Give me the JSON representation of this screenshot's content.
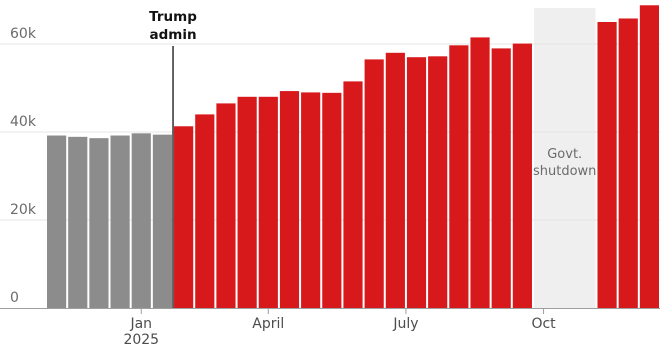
{
  "chart_data": {
    "type": "bar",
    "title": "",
    "xlabel": "",
    "ylabel": "",
    "ylim": [
      0,
      70000
    ],
    "yticks": [
      {
        "value": 0,
        "label": "0"
      },
      {
        "value": 20000,
        "label": "20k"
      },
      {
        "value": 40000,
        "label": "40k"
      },
      {
        "value": 60000,
        "label": "60k"
      }
    ],
    "grid": true,
    "legend": "none",
    "colors": {
      "before_admin": "#8c8c8c",
      "trump_admin": "#d7191c",
      "shutdown_band": "#efefef",
      "annotation": "#121212"
    },
    "series": [
      {
        "values": [
          39200,
          38900,
          38600,
          39200,
          39700,
          39400,
          41300,
          44000,
          46500,
          48000,
          48000,
          49300,
          49000,
          48900,
          51500,
          56500,
          58000,
          57000,
          57200,
          59700,
          61500,
          59000,
          60100,
          null,
          null,
          null,
          65000,
          65800,
          68800
        ],
        "period": [
          "before",
          "before",
          "before",
          "before",
          "before",
          "before",
          "admin",
          "admin",
          "admin",
          "admin",
          "admin",
          "admin",
          "admin",
          "admin",
          "admin",
          "admin",
          "admin",
          "admin",
          "admin",
          "admin",
          "admin",
          "admin",
          "admin",
          "shutdown",
          "shutdown",
          "shutdown",
          "admin",
          "admin",
          "admin"
        ]
      }
    ],
    "x_ticks": [
      {
        "label": "Jan",
        "sublabel": "2025",
        "at_bar": 4.5
      },
      {
        "label": "April",
        "at_bar": 10.5
      },
      {
        "label": "July",
        "at_bar": 17
      },
      {
        "label": "Oct",
        "at_bar": 23.5
      }
    ],
    "annotations": [
      {
        "id": "trump-admin",
        "lines": [
          "Trump",
          "admin"
        ],
        "at_boundary": 6
      },
      {
        "id": "govt-shutdown",
        "lines": [
          "Govt.",
          "shutdown"
        ],
        "from_bar": 23,
        "to_bar": 26
      }
    ]
  }
}
